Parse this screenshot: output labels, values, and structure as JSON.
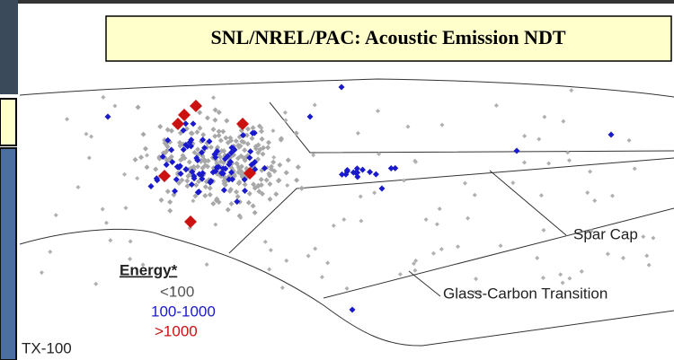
{
  "header": {
    "title": "SNL/NREL/PAC: Acoustic Emission NDT"
  },
  "annotations": {
    "spar_cap": "Spar Cap",
    "transition": "Glass-Carbon Transition",
    "specimen": "TX-100"
  },
  "legend": {
    "title": "Energy*",
    "items": [
      "<100",
      "100-1000",
      ">1000"
    ]
  }
}
